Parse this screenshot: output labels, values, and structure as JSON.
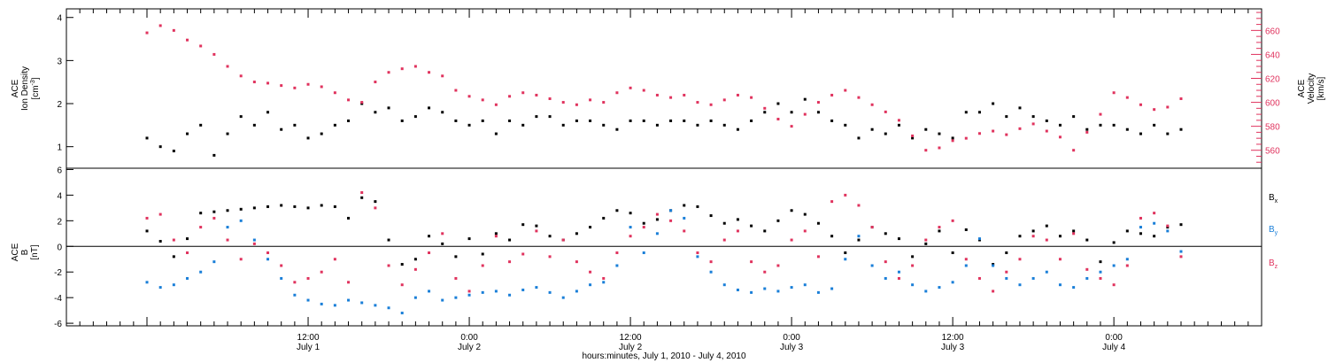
{
  "colors": {
    "black": "#000000",
    "pink": "#e0335e",
    "blue": "#1a7fd8"
  },
  "x_axis": {
    "title": "hours:minutes, July  1, 2010 - July  4, 2010",
    "ticks": [
      {
        "hour": 12,
        "time": "12:00",
        "date": "July 1"
      },
      {
        "hour": 24,
        "time": "0:00",
        "date": "July 2"
      },
      {
        "hour": 36,
        "time": "12:00",
        "date": "July 2"
      },
      {
        "hour": 48,
        "time": "0:00",
        "date": "July 3"
      },
      {
        "hour": 60,
        "time": "12:00",
        "date": "July 3"
      },
      {
        "hour": 72,
        "time": "0:00",
        "date": "July 4"
      }
    ]
  },
  "chart_data": [
    {
      "type": "scatter",
      "panel": "top",
      "left_axis": {
        "label_lines": [
          "ACE",
          "Ion Density"
        ],
        "unit_base": "[cm",
        "unit_sup": "-3",
        "unit_end": "]",
        "ylim": [
          0.5,
          4.2
        ],
        "ticks": [
          "1",
          "2",
          "3",
          "4"
        ],
        "tick_values": [
          1,
          2,
          3,
          4
        ]
      },
      "right_axis": {
        "label_lines": [
          "ACE",
          "Velocity",
          "[km/s]"
        ],
        "ylim": [
          545,
          678
        ],
        "ticks": [
          "560",
          "580",
          "600",
          "620",
          "640",
          "660"
        ],
        "tick_values": [
          560,
          580,
          600,
          620,
          640,
          660
        ]
      },
      "series": [
        {
          "axis": "left",
          "color": "#000000",
          "x": [
            0.0,
            1.0,
            2.0,
            3.0,
            4.0,
            5.0,
            6.0,
            7.0,
            8.0,
            9.0,
            10.0,
            11.0,
            12.0,
            13.0,
            14.0,
            15.0,
            16.0,
            17.0,
            18.0,
            19.0,
            20.0,
            21.0,
            22.0,
            23.0,
            24.0,
            25.0,
            26.0,
            27.0,
            28.0,
            29.0,
            30.0,
            31.0,
            32.0,
            33.0,
            34.0,
            35.0,
            36.0,
            37.0,
            38.0,
            39.0,
            40.0,
            41.0,
            42.0,
            43.0,
            44.0,
            45.0,
            46.0,
            47.0,
            48.0,
            49.0,
            50.0,
            51.0,
            52.0,
            53.0,
            54.0,
            55.0,
            56.0,
            57.0,
            58.0,
            59.0,
            60.0,
            61.0,
            62.0,
            63.0,
            64.0,
            65.0,
            66.0,
            67.0,
            68.0,
            69.0,
            70.0,
            71.0,
            72.0,
            73.0,
            74.0,
            75.0,
            76.0,
            77.0
          ],
          "y": [
            1.2,
            1.0,
            0.9,
            1.3,
            1.5,
            0.8,
            1.3,
            1.7,
            1.5,
            1.8,
            1.4,
            1.5,
            1.2,
            1.3,
            1.5,
            1.6,
            2.0,
            1.8,
            1.9,
            1.6,
            1.7,
            1.9,
            1.8,
            1.6,
            1.5,
            1.6,
            1.3,
            1.6,
            1.5,
            1.7,
            1.7,
            1.5,
            1.6,
            1.6,
            1.5,
            1.4,
            1.6,
            1.6,
            1.5,
            1.6,
            1.6,
            1.5,
            1.6,
            1.5,
            1.4,
            1.6,
            1.8,
            2.0,
            1.8,
            2.1,
            1.8,
            1.6,
            1.5,
            1.2,
            1.4,
            1.3,
            1.5,
            1.2,
            1.4,
            1.3,
            1.2,
            1.8,
            1.8,
            2.0,
            1.7,
            1.9,
            1.7,
            1.6,
            1.5,
            1.7,
            1.4,
            1.5,
            1.5,
            1.4,
            1.3,
            1.5,
            1.3,
            1.4
          ]
        },
        {
          "axis": "right",
          "color": "#e0335e",
          "x": [
            0.0,
            1.0,
            2.0,
            3.0,
            4.0,
            5.0,
            6.0,
            7.0,
            8.0,
            9.0,
            10.0,
            11.0,
            12.0,
            13.0,
            14.0,
            15.0,
            16.0,
            17.0,
            18.0,
            19.0,
            20.0,
            21.0,
            22.0,
            23.0,
            24.0,
            25.0,
            26.0,
            27.0,
            28.0,
            29.0,
            30.0,
            31.0,
            32.0,
            33.0,
            34.0,
            35.0,
            36.0,
            37.0,
            38.0,
            39.0,
            40.0,
            41.0,
            42.0,
            43.0,
            44.0,
            45.0,
            46.0,
            47.0,
            48.0,
            49.0,
            50.0,
            51.0,
            52.0,
            53.0,
            54.0,
            55.0,
            56.0,
            57.0,
            58.0,
            59.0,
            60.0,
            61.0,
            62.0,
            63.0,
            64.0,
            65.0,
            66.0,
            67.0,
            68.0,
            69.0,
            70.0,
            71.0,
            72.0,
            73.0,
            74.0,
            75.0,
            76.0,
            77.0
          ],
          "y": [
            658,
            664,
            660,
            652,
            647,
            640,
            630,
            622,
            617,
            616,
            614,
            612,
            615,
            613,
            608,
            602,
            600,
            617,
            625,
            628,
            630,
            625,
            622,
            610,
            605,
            602,
            598,
            605,
            608,
            606,
            603,
            600,
            598,
            602,
            600,
            608,
            612,
            610,
            606,
            604,
            606,
            600,
            598,
            602,
            606,
            604,
            595,
            586,
            580,
            590,
            600,
            606,
            610,
            604,
            598,
            592,
            585,
            572,
            560,
            562,
            568,
            570,
            574,
            576,
            573,
            578,
            582,
            576,
            571,
            560,
            575,
            590,
            608,
            604,
            598,
            594,
            596,
            603
          ]
        }
      ]
    },
    {
      "type": "scatter",
      "panel": "bottom",
      "left_axis": {
        "label_lines": [
          "ACE",
          "B",
          "[nT]"
        ],
        "ylim": [
          -6.2,
          6.1
        ],
        "ticks": [
          "-6",
          "-4",
          "-2",
          "0",
          "2",
          "4",
          "6"
        ],
        "tick_values": [
          -6,
          -4,
          -2,
          0,
          2,
          4,
          6
        ]
      },
      "series": [
        {
          "name_main": "B",
          "name_sub": "x",
          "color": "#000000",
          "x": [
            0.0,
            1.0,
            2.0,
            3.0,
            4.0,
            5.0,
            6.0,
            7.0,
            8.0,
            9.0,
            10.0,
            11.0,
            12.0,
            13.0,
            14.0,
            15.0,
            16.0,
            17.0,
            18.0,
            19.0,
            20.0,
            21.0,
            22.0,
            23.0,
            24.0,
            25.0,
            26.0,
            27.0,
            28.0,
            29.0,
            30.0,
            31.0,
            32.0,
            33.0,
            34.0,
            35.0,
            36.0,
            37.0,
            38.0,
            39.0,
            40.0,
            41.0,
            42.0,
            43.0,
            44.0,
            45.0,
            46.0,
            47.0,
            48.0,
            49.0,
            50.0,
            51.0,
            52.0,
            53.0,
            54.0,
            55.0,
            56.0,
            57.0,
            58.0,
            59.0,
            60.0,
            61.0,
            62.0,
            63.0,
            64.0,
            65.0,
            66.0,
            67.0,
            68.0,
            69.0,
            70.0,
            71.0,
            72.0,
            73.0,
            74.0,
            75.0,
            76.0,
            77.0
          ],
          "y": [
            1.2,
            0.4,
            -0.8,
            0.6,
            2.6,
            2.7,
            2.8,
            2.9,
            3.0,
            3.1,
            3.2,
            3.1,
            3.0,
            3.2,
            3.1,
            2.2,
            3.8,
            3.5,
            0.5,
            -1.4,
            -1.0,
            0.8,
            0.2,
            -0.8,
            0.6,
            -0.6,
            1.0,
            0.5,
            1.7,
            1.6,
            0.8,
            0.5,
            1.0,
            1.5,
            2.2,
            2.8,
            2.6,
            1.8,
            2.1,
            2.8,
            3.2,
            3.1,
            2.4,
            1.8,
            2.1,
            1.6,
            1.2,
            2.0,
            2.8,
            2.5,
            1.8,
            0.8,
            -0.5,
            0.5,
            1.5,
            1.0,
            0.6,
            -0.8,
            0.2,
            1.2,
            -0.5,
            1.3,
            0.5,
            -1.4,
            -0.5,
            0.8,
            1.2,
            1.6,
            0.8,
            1.2,
            0.5,
            -1.2,
            0.3,
            1.2,
            1.0,
            0.8,
            1.5,
            1.7
          ]
        },
        {
          "name_main": "B",
          "name_sub": "y",
          "color": "#1a7fd8",
          "x": [
            0.0,
            1.0,
            2.0,
            3.0,
            4.0,
            5.0,
            6.0,
            7.0,
            8.0,
            9.0,
            10.0,
            11.0,
            12.0,
            13.0,
            14.0,
            15.0,
            16.0,
            17.0,
            18.0,
            19.0,
            20.0,
            21.0,
            22.0,
            23.0,
            24.0,
            25.0,
            26.0,
            27.0,
            28.0,
            29.0,
            30.0,
            31.0,
            32.0,
            33.0,
            34.0,
            35.0,
            36.0,
            37.0,
            38.0,
            39.0,
            40.0,
            41.0,
            42.0,
            43.0,
            44.0,
            45.0,
            46.0,
            47.0,
            48.0,
            49.0,
            50.0,
            51.0,
            52.0,
            53.0,
            54.0,
            55.0,
            56.0,
            57.0,
            58.0,
            59.0,
            60.0,
            61.0,
            62.0,
            63.0,
            64.0,
            65.0,
            66.0,
            67.0,
            68.0,
            69.0,
            70.0,
            71.0,
            72.0,
            73.0,
            74.0,
            75.0,
            76.0,
            77.0
          ],
          "y": [
            -2.8,
            -3.2,
            -3.0,
            -2.5,
            -2.0,
            -1.2,
            1.5,
            2.0,
            0.5,
            -1.0,
            -2.5,
            -3.8,
            -4.2,
            -4.5,
            -4.6,
            -4.2,
            -4.4,
            -4.6,
            -4.8,
            -5.2,
            -4.0,
            -3.5,
            -4.2,
            -4.0,
            -3.8,
            -3.6,
            -3.5,
            -3.8,
            -3.4,
            -3.2,
            -3.6,
            -4.0,
            -3.5,
            -3.0,
            -2.8,
            -1.5,
            1.5,
            -0.5,
            1.0,
            2.8,
            2.2,
            -0.8,
            -2.0,
            -3.0,
            -3.4,
            -3.6,
            -3.3,
            -3.5,
            -3.2,
            -3.0,
            -3.6,
            -3.3,
            -1.0,
            0.8,
            -1.5,
            -2.5,
            -2.0,
            -3.0,
            -3.5,
            -3.2,
            -2.8,
            -1.5,
            0.6,
            -1.5,
            -2.5,
            -3.0,
            -2.5,
            -2.0,
            -3.0,
            -3.2,
            -2.5,
            -2.0,
            -1.5,
            -1.0,
            1.5,
            1.8,
            1.2,
            -0.4
          ]
        },
        {
          "name_main": "B",
          "name_sub": "z",
          "color": "#e0335e",
          "x": [
            0.0,
            1.0,
            2.0,
            3.0,
            4.0,
            5.0,
            6.0,
            7.0,
            8.0,
            9.0,
            10.0,
            11.0,
            12.0,
            13.0,
            14.0,
            15.0,
            16.0,
            17.0,
            18.0,
            19.0,
            20.0,
            21.0,
            22.0,
            23.0,
            24.0,
            25.0,
            26.0,
            27.0,
            28.0,
            29.0,
            30.0,
            31.0,
            32.0,
            33.0,
            34.0,
            35.0,
            36.0,
            37.0,
            38.0,
            39.0,
            40.0,
            41.0,
            42.0,
            43.0,
            44.0,
            45.0,
            46.0,
            47.0,
            48.0,
            49.0,
            50.0,
            51.0,
            52.0,
            53.0,
            54.0,
            55.0,
            56.0,
            57.0,
            58.0,
            59.0,
            60.0,
            61.0,
            62.0,
            63.0,
            64.0,
            65.0,
            66.0,
            67.0,
            68.0,
            69.0,
            70.0,
            71.0,
            72.0,
            73.0,
            74.0,
            75.0,
            76.0,
            77.0
          ],
          "y": [
            2.2,
            2.5,
            0.5,
            -0.5,
            1.5,
            2.2,
            0.5,
            -1.0,
            0.2,
            -0.5,
            -1.5,
            -2.8,
            -2.5,
            -2.0,
            -1.0,
            -2.8,
            4.2,
            3.0,
            -1.5,
            -3.0,
            -1.8,
            -0.5,
            1.0,
            -2.5,
            -3.5,
            -1.5,
            0.8,
            -1.2,
            -0.6,
            1.2,
            -0.8,
            0.5,
            -1.2,
            -2.0,
            -2.5,
            -0.5,
            0.8,
            1.5,
            2.5,
            2.0,
            1.2,
            -0.5,
            -1.2,
            0.5,
            1.2,
            -1.2,
            -2.0,
            -1.5,
            0.5,
            1.2,
            -0.8,
            3.5,
            4.0,
            3.2,
            1.5,
            -1.2,
            -2.5,
            -1.5,
            0.5,
            1.5,
            2.0,
            -1.0,
            -2.5,
            -3.5,
            -2.0,
            -1.0,
            0.8,
            0.5,
            -1.0,
            1.0,
            -1.8,
            -2.5,
            -3.0,
            -1.5,
            2.2,
            2.6,
            1.6,
            -0.8
          ]
        }
      ]
    }
  ]
}
